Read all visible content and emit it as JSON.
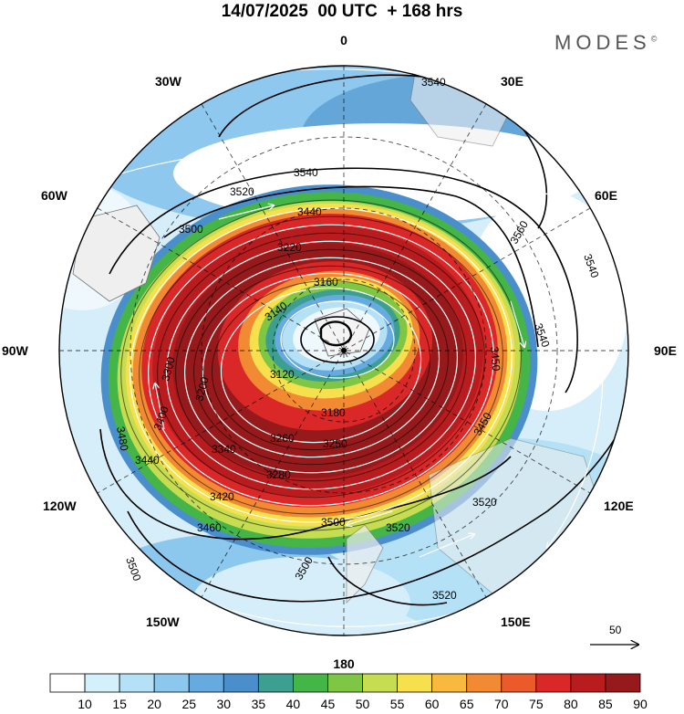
{
  "header": {
    "title": "14/07/2025  00 UTC  + 168 hrs",
    "brand": "MODES",
    "brand_mark": "©"
  },
  "meridian_labels": [
    "0",
    "30E",
    "60E",
    "90E",
    "120E",
    "150E",
    "180",
    "150W",
    "120W",
    "90W",
    "60W",
    "30W"
  ],
  "contour_labels": [
    "3540",
    "3540",
    "3520",
    "3560",
    "3540",
    "3540",
    "3500",
    "3440",
    "3220",
    "3160",
    "3140",
    "3120",
    "3180",
    "3200",
    "3300",
    "3450",
    "3480",
    "3340",
    "3260",
    "3250",
    "3280",
    "3400",
    "3420",
    "3440",
    "3460",
    "3500",
    "3500",
    "3520",
    "3520",
    "3520",
    "3500",
    "3450"
  ],
  "wind_reference": {
    "value": "50"
  },
  "colorbar": {
    "labels": [
      "10",
      "15",
      "20",
      "25",
      "30",
      "35",
      "40",
      "45",
      "50",
      "55",
      "60",
      "65",
      "70",
      "75",
      "80",
      "85",
      "90"
    ],
    "colors": [
      "#ffffff",
      "#d3f0fb",
      "#b4e1f6",
      "#8cc8ee",
      "#66aadf",
      "#4a8fcb",
      "#3d9f90",
      "#45b548",
      "#80c645",
      "#c6dd51",
      "#f7e04d",
      "#f8b93f",
      "#f28a33",
      "#ea5a2b",
      "#d92827",
      "#b91c1f",
      "#961a1c"
    ]
  }
}
